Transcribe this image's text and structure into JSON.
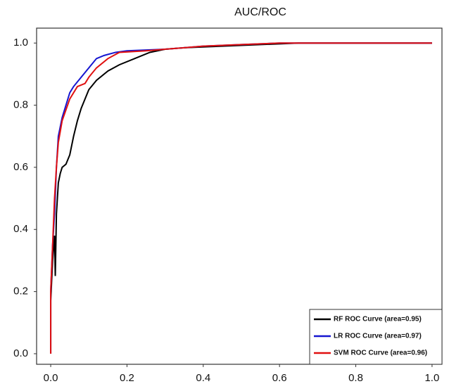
{
  "chart_data": {
    "type": "line",
    "title": "AUC/ROC",
    "xlim": [
      -0.037,
      1.026
    ],
    "ylim": [
      -0.034,
      1.048
    ],
    "xticks": [
      {
        "value": 0,
        "label": "0.0"
      },
      0.2,
      0.4,
      0.6,
      0.8,
      {
        "value": 1,
        "label": "1.0"
      }
    ],
    "yticks": [
      {
        "value": 0,
        "label": "0.0"
      },
      0.2,
      0.4,
      0.6,
      0.8,
      {
        "value": 1,
        "label": "1.0"
      }
    ],
    "legend": "lower right",
    "series": [
      {
        "name": "RF ROC Curve (area=0.95)",
        "color": "#000000",
        "x": [
          0,
          0,
          0.005,
          0.01,
          0.012,
          0.015,
          0.02,
          0.025,
          0.03,
          0.04,
          0.05,
          0.06,
          0.07,
          0.08,
          0.09,
          0.1,
          0.12,
          0.15,
          0.18,
          0.22,
          0.26,
          0.3,
          0.35,
          0.45,
          0.55,
          0.65,
          1
        ],
        "values": [
          0,
          0.17,
          0.3,
          0.38,
          0.25,
          0.45,
          0.55,
          0.58,
          0.6,
          0.61,
          0.64,
          0.7,
          0.75,
          0.79,
          0.82,
          0.85,
          0.88,
          0.91,
          0.93,
          0.95,
          0.97,
          0.98,
          0.985,
          0.99,
          0.995,
          1,
          1
        ]
      },
      {
        "name": "LR ROC Curve (area=0.97)",
        "color": "#1515d0",
        "x": [
          0,
          0,
          0.005,
          0.01,
          0.015,
          0.02,
          0.03,
          0.04,
          0.05,
          0.06,
          0.08,
          0.1,
          0.12,
          0.14,
          0.17,
          0.2,
          0.3,
          0.4,
          0.5,
          0.6,
          1
        ],
        "values": [
          0,
          0.2,
          0.35,
          0.45,
          0.6,
          0.7,
          0.76,
          0.8,
          0.84,
          0.86,
          0.89,
          0.92,
          0.95,
          0.96,
          0.97,
          0.975,
          0.98,
          0.99,
          0.995,
          1,
          1
        ]
      },
      {
        "name": "SVM ROC Curve (area=0.96)",
        "color": "#e01010",
        "x": [
          0,
          0,
          0.005,
          0.01,
          0.015,
          0.02,
          0.03,
          0.05,
          0.07,
          0.09,
          0.1,
          0.12,
          0.15,
          0.18,
          0.25,
          0.3,
          0.35,
          0.4,
          0.5,
          0.6,
          1
        ],
        "values": [
          0,
          0.2,
          0.35,
          0.5,
          0.6,
          0.68,
          0.75,
          0.82,
          0.86,
          0.87,
          0.89,
          0.92,
          0.95,
          0.97,
          0.975,
          0.98,
          0.985,
          0.99,
          0.995,
          1,
          1
        ]
      }
    ]
  }
}
